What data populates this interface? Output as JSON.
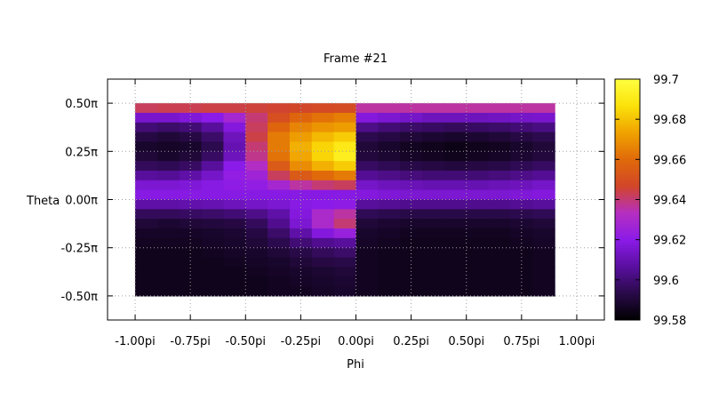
{
  "chart_data": {
    "type": "heatmap",
    "title": "Frame #21",
    "xlabel": "Phi",
    "ylabel": "Theta",
    "xlim": [
      -1.125,
      1.125
    ],
    "ylim": [
      -0.625,
      0.625
    ],
    "x_ticks": [
      {
        "value": -1.0,
        "label": "-1.00pi"
      },
      {
        "value": -0.75,
        "label": "-0.75pi"
      },
      {
        "value": -0.5,
        "label": "-0.50pi"
      },
      {
        "value": -0.25,
        "label": "-0.25pi"
      },
      {
        "value": 0.0,
        "label": "0.00pi"
      },
      {
        "value": 0.25,
        "label": "0.25pi"
      },
      {
        "value": 0.5,
        "label": "0.50pi"
      },
      {
        "value": 0.75,
        "label": "0.75pi"
      },
      {
        "value": 1.0,
        "label": "1.00pi"
      }
    ],
    "y_ticks": [
      {
        "value": 0.5,
        "label": "0.50π"
      },
      {
        "value": 0.25,
        "label": "0.25π"
      },
      {
        "value": 0.0,
        "label": "0.00π"
      },
      {
        "value": -0.25,
        "label": "-0.25π"
      },
      {
        "value": -0.5,
        "label": "-0.50π"
      }
    ],
    "grid": true,
    "data_extent": {
      "x": [
        -1.0,
        0.9
      ],
      "y": [
        -0.5,
        0.5
      ]
    },
    "colorbar": {
      "min": 99.58,
      "max": 99.7,
      "ticks": [
        {
          "value": 99.7,
          "label": "99.7"
        },
        {
          "value": 99.68,
          "label": "99.68"
        },
        {
          "value": 99.66,
          "label": "99.66"
        },
        {
          "value": 99.64,
          "label": "99.64"
        },
        {
          "value": 99.62,
          "label": "99.62"
        },
        {
          "value": 99.6,
          "label": "99.6"
        },
        {
          "value": 99.58,
          "label": "99.58"
        }
      ],
      "palette": [
        "#000000",
        "#2a0a4a",
        "#5a0fa0",
        "#8b1be8",
        "#b52fc0",
        "#d24628",
        "#e06a0a",
        "#f0a300",
        "#fbe20a",
        "#ffff40"
      ]
    },
    "x_centers": [
      -0.95,
      -0.85,
      -0.75,
      -0.65,
      -0.55,
      -0.45,
      -0.35,
      -0.25,
      -0.15,
      -0.05,
      0.05,
      0.15,
      0.25,
      0.35,
      0.45,
      0.55,
      0.65,
      0.75,
      0.85
    ],
    "y_centers": [
      0.475,
      0.425,
      0.375,
      0.325,
      0.275,
      0.225,
      0.175,
      0.125,
      0.075,
      0.025,
      -0.025,
      -0.075,
      -0.125,
      -0.175,
      -0.225,
      -0.275,
      -0.325,
      -0.375,
      -0.425,
      -0.475
    ],
    "values": [
      [
        99.642,
        99.643,
        99.643,
        99.644,
        99.644,
        99.645,
        99.646,
        99.647,
        99.648,
        99.649,
        99.636,
        99.636,
        99.636,
        99.636,
        99.636,
        99.636,
        99.636,
        99.636,
        99.636
      ],
      [
        99.615,
        99.615,
        99.617,
        99.62,
        99.628,
        99.64,
        99.65,
        99.658,
        99.662,
        99.665,
        99.618,
        99.616,
        99.614,
        99.612,
        99.612,
        99.612,
        99.613,
        99.614,
        99.615
      ],
      [
        99.6,
        99.598,
        99.6,
        99.606,
        99.618,
        99.642,
        99.658,
        99.666,
        99.67,
        99.672,
        99.603,
        99.6,
        99.598,
        99.597,
        99.596,
        99.597,
        99.598,
        99.6,
        99.602
      ],
      [
        99.592,
        99.59,
        99.592,
        99.598,
        99.612,
        99.644,
        99.664,
        99.672,
        99.678,
        99.682,
        99.594,
        99.592,
        99.59,
        99.589,
        99.588,
        99.589,
        99.59,
        99.592,
        99.594
      ],
      [
        99.588,
        99.587,
        99.588,
        99.594,
        99.61,
        99.64,
        99.664,
        99.676,
        99.684,
        99.69,
        99.59,
        99.588,
        99.586,
        99.585,
        99.584,
        99.585,
        99.586,
        99.588,
        99.59
      ],
      [
        99.59,
        99.588,
        99.59,
        99.597,
        99.612,
        99.638,
        99.662,
        99.674,
        99.684,
        99.692,
        99.591,
        99.589,
        99.587,
        99.586,
        99.585,
        99.586,
        99.587,
        99.589,
        99.591
      ],
      [
        99.596,
        99.595,
        99.597,
        99.606,
        99.62,
        99.632,
        99.654,
        99.668,
        99.676,
        99.682,
        99.597,
        99.595,
        99.593,
        99.592,
        99.591,
        99.592,
        99.593,
        99.595,
        99.597
      ],
      [
        99.606,
        99.605,
        99.608,
        99.614,
        99.622,
        99.626,
        99.642,
        99.654,
        99.66,
        99.664,
        99.605,
        99.603,
        99.601,
        99.6,
        99.6,
        99.6,
        99.601,
        99.603,
        99.605
      ],
      [
        99.616,
        99.616,
        99.617,
        99.619,
        99.621,
        99.622,
        99.628,
        99.636,
        99.64,
        99.642,
        99.614,
        99.612,
        99.611,
        99.61,
        99.61,
        99.61,
        99.611,
        99.612,
        99.614
      ],
      [
        99.619,
        99.619,
        99.619,
        99.619,
        99.619,
        99.619,
        99.619,
        99.619,
        99.619,
        99.619,
        99.618,
        99.617,
        99.616,
        99.616,
        99.616,
        99.616,
        99.616,
        99.617,
        99.618
      ],
      [
        99.608,
        99.608,
        99.609,
        99.61,
        99.612,
        99.614,
        99.616,
        99.619,
        99.62,
        99.621,
        99.606,
        99.605,
        99.604,
        99.604,
        99.604,
        99.604,
        99.604,
        99.605,
        99.606
      ],
      [
        99.596,
        99.596,
        99.597,
        99.598,
        99.6,
        99.603,
        99.608,
        99.618,
        99.63,
        99.636,
        99.595,
        99.594,
        99.593,
        99.593,
        99.593,
        99.593,
        99.593,
        99.594,
        99.595
      ],
      [
        99.59,
        99.589,
        99.59,
        99.591,
        99.592,
        99.596,
        99.604,
        99.616,
        99.63,
        99.64,
        99.59,
        99.589,
        99.588,
        99.588,
        99.588,
        99.588,
        99.588,
        99.589,
        99.59
      ],
      [
        99.587,
        99.587,
        99.587,
        99.588,
        99.589,
        99.592,
        99.598,
        99.608,
        99.618,
        99.624,
        99.588,
        99.587,
        99.586,
        99.586,
        99.586,
        99.586,
        99.586,
        99.587,
        99.588
      ],
      [
        99.586,
        99.586,
        99.586,
        99.587,
        99.588,
        99.59,
        99.594,
        99.6,
        99.604,
        99.606,
        99.587,
        99.586,
        99.585,
        99.585,
        99.585,
        99.585,
        99.585,
        99.586,
        99.587
      ],
      [
        99.585,
        99.585,
        99.585,
        99.586,
        99.587,
        99.588,
        99.59,
        99.593,
        99.596,
        99.598,
        99.586,
        99.585,
        99.585,
        99.585,
        99.585,
        99.585,
        99.585,
        99.585,
        99.586
      ],
      [
        99.585,
        99.585,
        99.585,
        99.585,
        99.586,
        99.587,
        99.588,
        99.59,
        99.592,
        99.593,
        99.586,
        99.585,
        99.585,
        99.585,
        99.585,
        99.585,
        99.585,
        99.585,
        99.586
      ],
      [
        99.585,
        99.585,
        99.585,
        99.585,
        99.585,
        99.586,
        99.587,
        99.588,
        99.589,
        99.59,
        99.586,
        99.585,
        99.585,
        99.585,
        99.585,
        99.585,
        99.585,
        99.585,
        99.586
      ],
      [
        99.585,
        99.585,
        99.585,
        99.585,
        99.585,
        99.585,
        99.586,
        99.587,
        99.588,
        99.589,
        99.586,
        99.585,
        99.585,
        99.585,
        99.585,
        99.585,
        99.585,
        99.585,
        99.586
      ],
      [
        99.585,
        99.585,
        99.585,
        99.585,
        99.585,
        99.585,
        99.586,
        99.586,
        99.587,
        99.588,
        99.586,
        99.585,
        99.585,
        99.585,
        99.585,
        99.585,
        99.585,
        99.585,
        99.586
      ]
    ]
  }
}
